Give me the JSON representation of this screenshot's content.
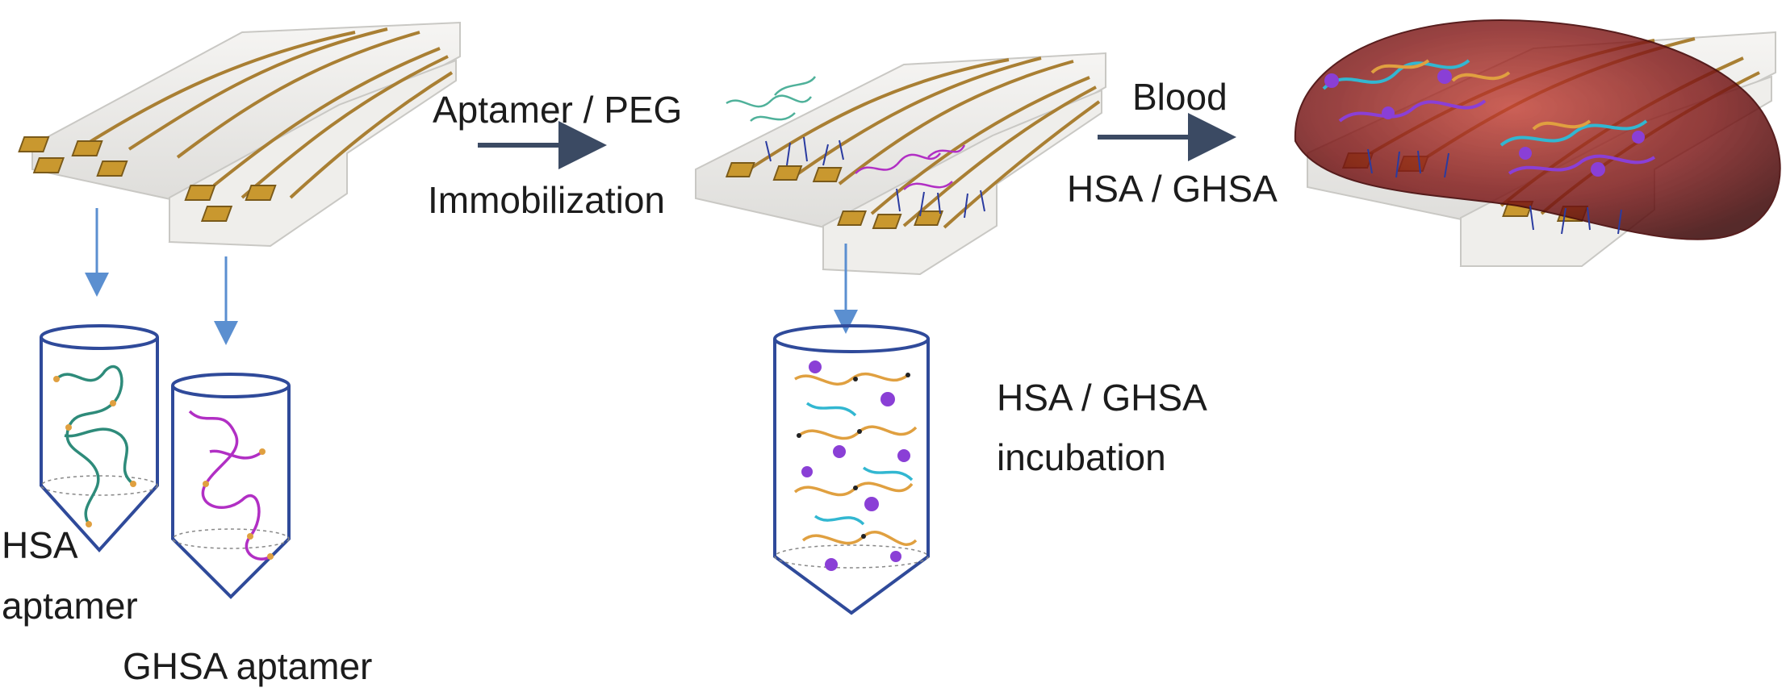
{
  "labels": {
    "hsa_aptamer_line1": "HSA",
    "hsa_aptamer_line2": "aptamer",
    "ghsa_aptamer": "GHSA aptamer",
    "step1_line1": "Aptamer / PEG",
    "step1_line2": "Immobilization",
    "step2_line1": "Blood",
    "step2_line2": "HSA / GHSA",
    "incubation_line1": "HSA / GHSA",
    "incubation_line2": "incubation"
  },
  "colors": {
    "substrate": "#ecebe9",
    "electrode": "#b38a3a",
    "electrode_pad": "#c9982f",
    "process_arrow": "#3b4a63",
    "down_arrow": "#5b8fd0",
    "tube_outline": "#2f4a9a",
    "hsa_aptamer": "#2e8b7a",
    "ghsa_aptamer": "#b12fc4",
    "blood_drop": "#6e1414",
    "protein_cyan": "#32b7d1",
    "protein_purple": "#8a3fd6",
    "protein_orange": "#e0a040"
  },
  "icons": [
    "electrode-chip",
    "aptamer-tube",
    "protein-tube",
    "blood-droplet"
  ]
}
